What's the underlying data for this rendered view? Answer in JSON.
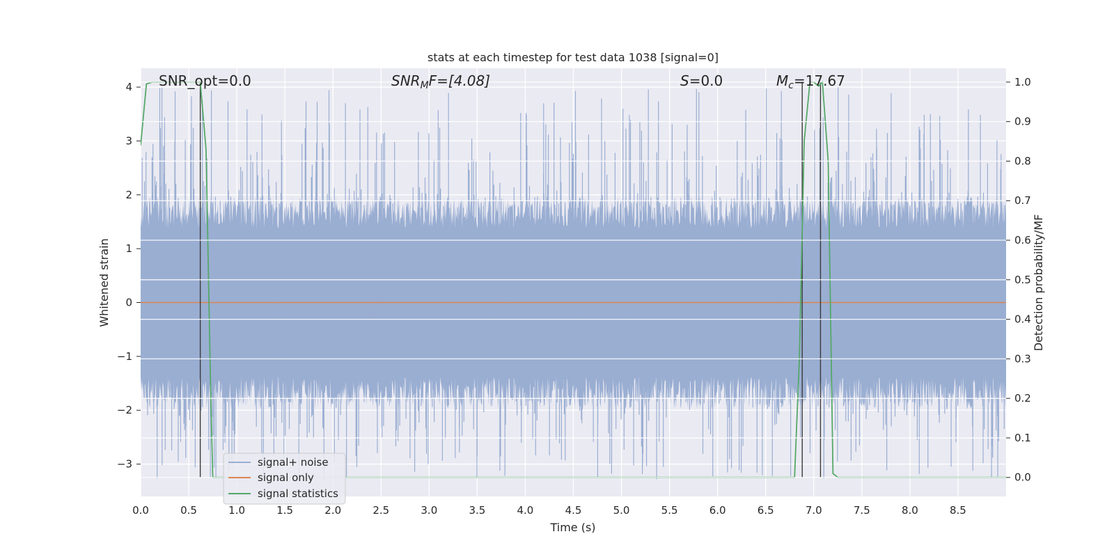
{
  "chart_data": {
    "type": "line",
    "title": "stats at each timestep for test data 1038 [signal=0]",
    "xlabel": "Time (s)",
    "ylabel_left": "Whitened strain",
    "ylabel_right": "Detection probability/MF",
    "xlim": [
      0,
      9.0
    ],
    "ylim_left": [
      -3.6,
      4.35
    ],
    "ylim_right": [
      -0.048,
      1.035
    ],
    "x_ticks": [
      "0.0",
      "0.5",
      "1.0",
      "1.5",
      "2.0",
      "2.5",
      "3.0",
      "3.5",
      "4.0",
      "4.5",
      "5.0",
      "5.5",
      "6.0",
      "6.5",
      "7.0",
      "7.5",
      "8.0",
      "8.5"
    ],
    "y_ticks_left": [
      "4",
      "3",
      "2",
      "1",
      "0",
      "−1",
      "−2",
      "−3"
    ],
    "y_ticks_right": [
      "1.0",
      "0.9",
      "0.8",
      "0.7",
      "0.6",
      "0.5",
      "0.4",
      "0.3",
      "0.2",
      "0.1",
      "0.0"
    ],
    "grid": true,
    "legend_position": "lower-left",
    "annotations": {
      "snr_opt": "SNR_opt=0.0",
      "snr_mf_main": "SNR",
      "snr_mf_sub": "M",
      "snr_mf_rest": "F=[4.08]",
      "s_main": "S",
      "s_rest": "=0.0",
      "mc_main": "M",
      "mc_sub": "c",
      "mc_rest": "=17.67"
    },
    "vertical_lines_x": [
      0.62,
      6.88,
      7.07
    ],
    "series": [
      {
        "name": "signal+ noise",
        "axis": "left",
        "color": "#9aaed2",
        "description_values": {
          "rms_envelope": 1.1,
          "peak_max": 4.0,
          "peak_min": -3.3
        }
      },
      {
        "name": "signal only",
        "axis": "left",
        "color": "#dd8452",
        "x": [
          0,
          9.0
        ],
        "y": [
          0,
          0
        ]
      },
      {
        "name": "signal statistics",
        "axis": "right",
        "color": "#55a868",
        "x": [
          0.0,
          0.06,
          0.12,
          0.25,
          0.4,
          0.55,
          0.62,
          0.68,
          0.73,
          0.75,
          0.8,
          1.0,
          3.0,
          5.0,
          6.0,
          6.5,
          6.8,
          6.85,
          6.9,
          6.96,
          7.0,
          7.05,
          7.09,
          7.15,
          7.2,
          7.25,
          7.5,
          8.0,
          8.5,
          9.0
        ],
        "y": [
          0.84,
          0.995,
          1.0,
          1.0,
          1.0,
          1.0,
          1.0,
          0.83,
          0.2,
          0.0,
          0.0,
          0.0,
          0.0,
          0.0,
          0.0,
          0.0,
          0.0,
          0.3,
          0.85,
          1.0,
          1.0,
          0.99,
          1.0,
          0.8,
          0.01,
          0.0,
          0.0,
          0.0,
          0.0,
          0.0
        ]
      }
    ]
  }
}
